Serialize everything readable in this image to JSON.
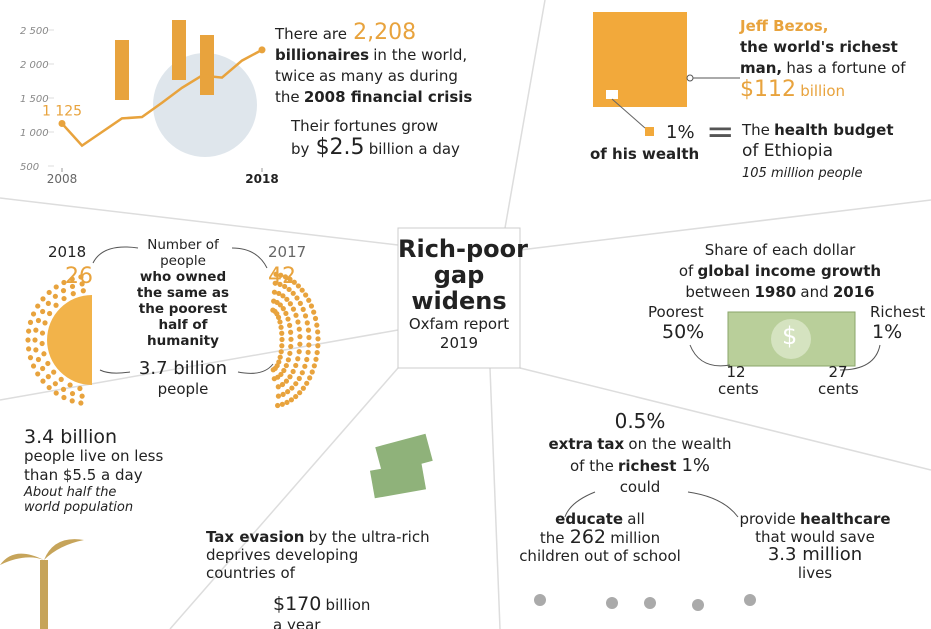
{
  "chart_data": {
    "type": "line",
    "x": [
      2008,
      2009,
      2010,
      2011,
      2012,
      2013,
      2014,
      2015,
      2016,
      2017,
      2018
    ],
    "values": [
      1125,
      800,
      1000,
      1200,
      1220,
      1430,
      1650,
      1830,
      1800,
      2050,
      2208
    ],
    "value_labels": [
      "1 125",
      null,
      null,
      null,
      null,
      null,
      null,
      null,
      null,
      null,
      null
    ],
    "color": "#e8a33d",
    "xlim": [
      2008,
      2018
    ],
    "ylim": [
      500,
      2500
    ],
    "xticks": [
      2008,
      2018
    ],
    "yticks": [
      500,
      {
        "value": 1000,
        "label": "1 000"
      },
      {
        "value": 1500,
        "label": "1 500"
      },
      {
        "value": 2000,
        "label": "2 000"
      },
      {
        "value": 2500,
        "label": "2 500"
      }
    ]
  },
  "billionaires": {
    "l1": [
      "There are",
      "2,208"
    ],
    "l2": [
      "billionaires",
      "in the world,"
    ],
    "l3": [
      "twice",
      "as many as during"
    ],
    "l4": [
      "the",
      "2008 financial crisis"
    ],
    "l5": "Their fortunes grow",
    "l6": [
      "by",
      "$2.5",
      "billion a day"
    ]
  },
  "bezos": {
    "name": "Jeff Bezos,",
    "l2": "the world's richest",
    "l3": [
      "man,",
      "has a fortune of"
    ],
    "l4": [
      "$112",
      "billion"
    ],
    "pct": "1%",
    "of": "of his wealth",
    "eq": "=",
    "e1": [
      "The",
      "health budget"
    ],
    "e2": "of Ethiopia",
    "e3": "105 million people"
  },
  "center": {
    "l1": "Rich-poor",
    "l2": "gap",
    "l3": "widens",
    "l4": "Oxfam report",
    "l5": "2019"
  },
  "half": {
    "y1": "2018",
    "v1": "26",
    "y2": "2017",
    "v2": "42",
    "lines": [
      "Number of",
      "people"
    ],
    "bold": [
      "who owned",
      "the same as",
      "the poorest",
      "half of",
      "humanity"
    ],
    "p1": "3.7 billion",
    "p2": "people"
  },
  "income": {
    "l1": "Share of each dollar",
    "l2": [
      "of",
      "global income growth"
    ],
    "l3": [
      "between",
      "1980",
      "and",
      "2016"
    ],
    "poor": "Poorest",
    "poorv": "50%",
    "rich": "Richest",
    "richv": "1%",
    "dollar": "$",
    "c1": "12",
    "c1u": "cents",
    "c2": "27",
    "c2u": "cents"
  },
  "poverty": {
    "l1": "3.4 billion",
    "l2": "people live on less",
    "l3": "than $5.5 a day",
    "l4": "About half the",
    "l5": "world population"
  },
  "evasion": {
    "l1": [
      "Tax evasion",
      "by the ultra-rich"
    ],
    "l2": "deprives developing",
    "l3": "countries of",
    "l4": [
      "$170",
      "billion"
    ],
    "l5": "a year"
  },
  "tax": {
    "pct": "0.5%",
    "l1": [
      "extra",
      "tax",
      "on the wealth"
    ],
    "l2": [
      "of the",
      "richest",
      "1%"
    ],
    "l3": "could",
    "a1": [
      "educate",
      "all"
    ],
    "a2": [
      "the",
      "262",
      "million"
    ],
    "a3": "children out of school",
    "b1": [
      "provide",
      "healthcare"
    ],
    "b2": "that would save",
    "b3": "3.3 million",
    "b4": "lives"
  }
}
